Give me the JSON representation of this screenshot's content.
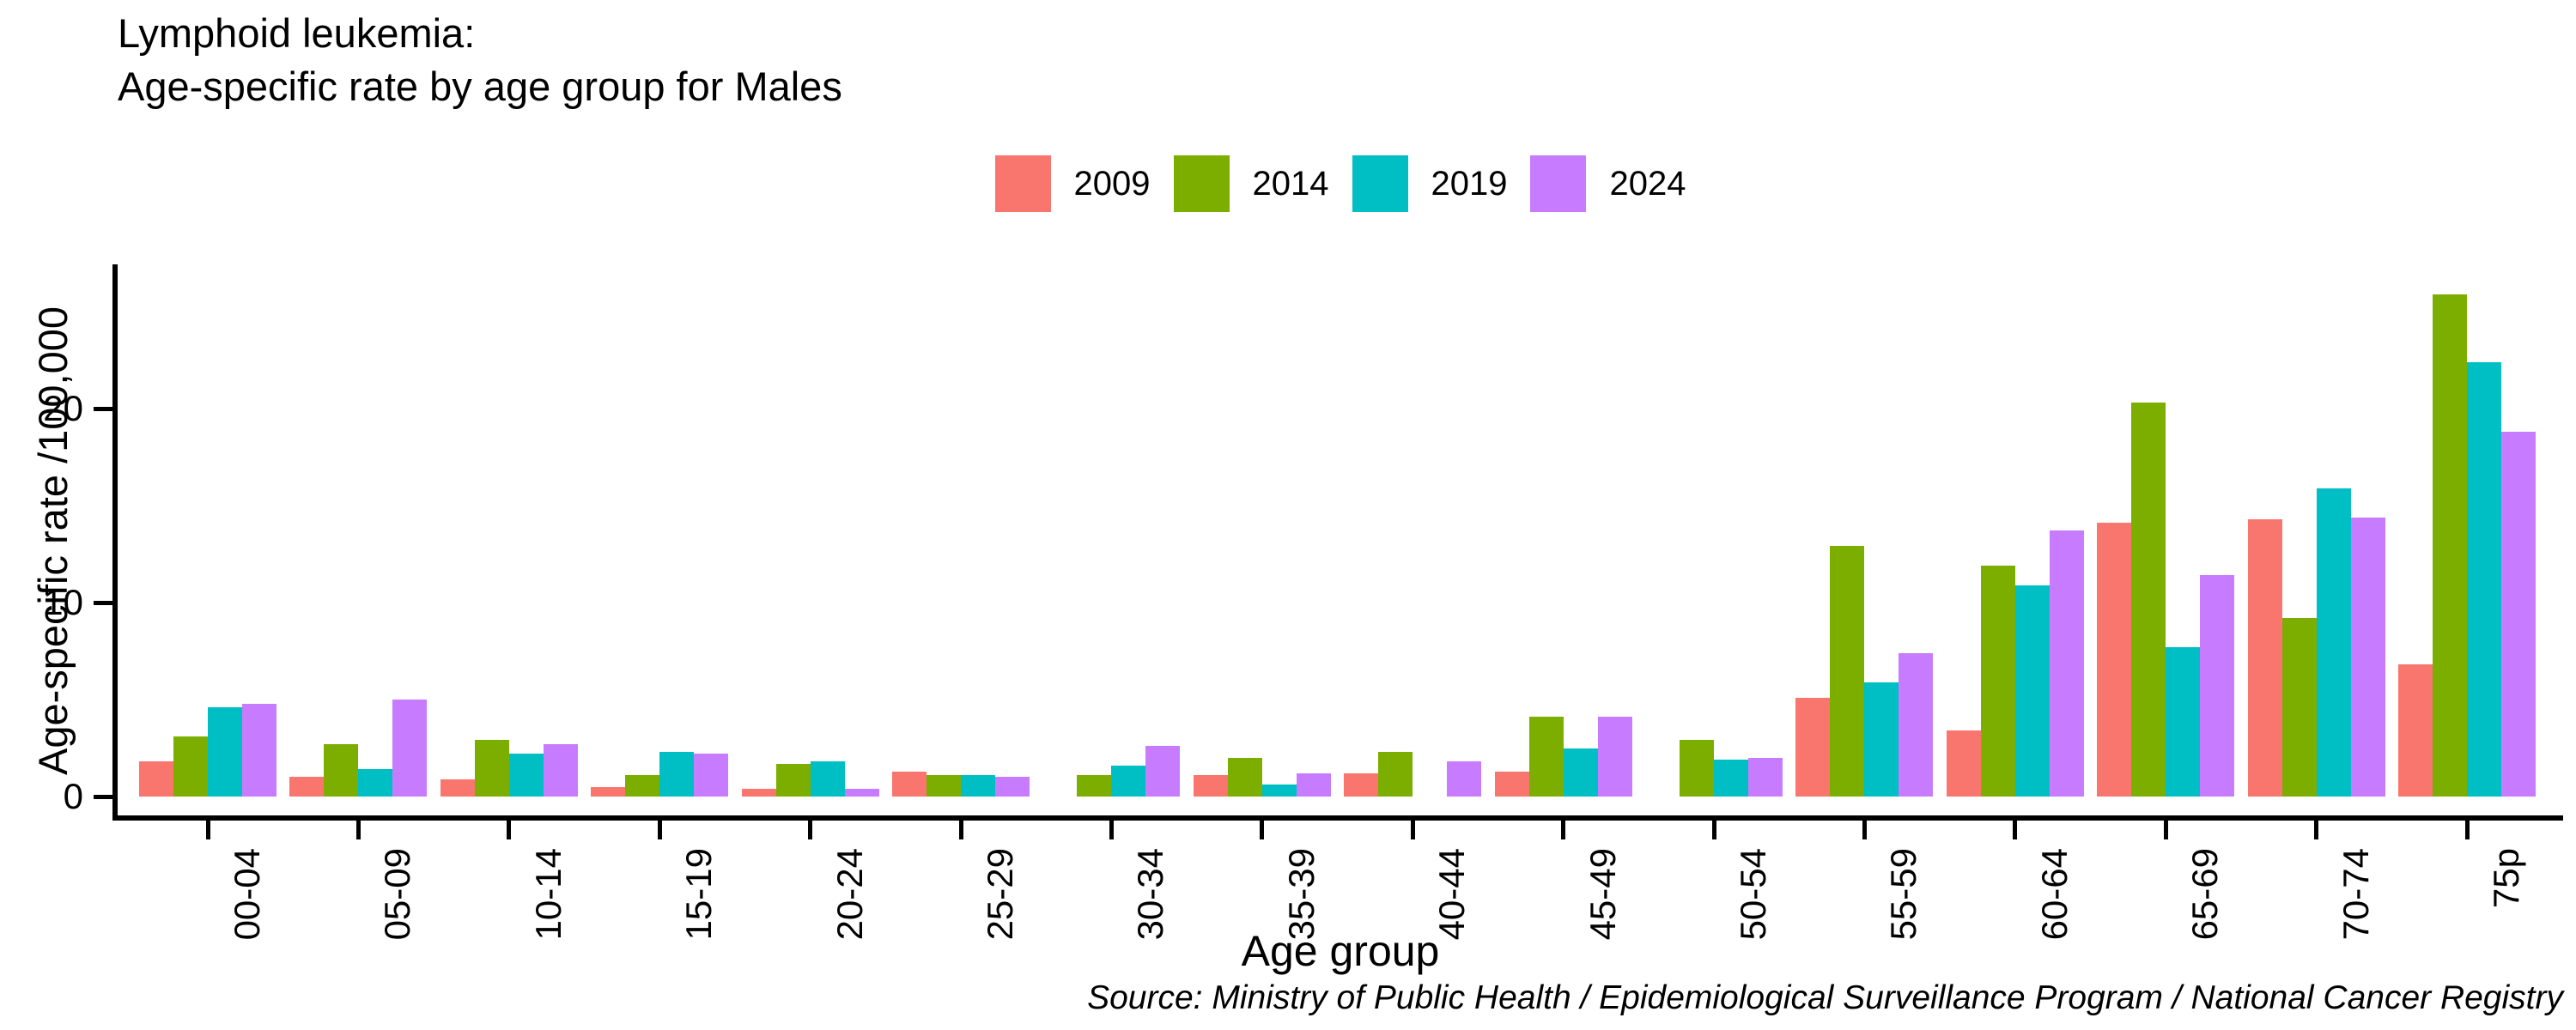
{
  "header": {
    "title_line1": "Lymphoid leukemia:",
    "title_line2": "Age-specific rate by age group for Males"
  },
  "axes": {
    "y_title": "Age-specific rate /100,000",
    "x_title": "Age group",
    "y_ticks": [
      0,
      10,
      20
    ]
  },
  "footer": {
    "source": "Source: Ministry of Public Health / Epidemiological Surveillance Program / National Cancer Registry"
  },
  "chart_data": {
    "type": "bar",
    "title": "Lymphoid leukemia: Age-specific rate by age group for Males",
    "xlabel": "Age group",
    "ylabel": "Age-specific rate /100,000",
    "ylim": [
      0,
      27.5
    ],
    "yticks": [
      0,
      10,
      20
    ],
    "grid": false,
    "legend_position": "top-center",
    "categories": [
      "00-04",
      "05-09",
      "10-14",
      "15-19",
      "20-24",
      "25-29",
      "30-34",
      "35-39",
      "40-44",
      "45-49",
      "50-54",
      "55-59",
      "60-64",
      "65-69",
      "70-74",
      "75p"
    ],
    "series": [
      {
        "name": "2009",
        "color": "#F8766D",
        "values": [
          1.8,
          1.0,
          0.9,
          0.5,
          0.4,
          1.3,
          0,
          1.1,
          1.2,
          1.3,
          0,
          5.1,
          3.4,
          14.1,
          14.3,
          6.8
        ]
      },
      {
        "name": "2014",
        "color": "#7CAE00",
        "values": [
          3.1,
          2.7,
          2.9,
          1.1,
          1.7,
          1.1,
          1.1,
          2.0,
          2.3,
          4.1,
          2.9,
          12.9,
          11.9,
          20.3,
          9.2,
          25.9
        ]
      },
      {
        "name": "2019",
        "color": "#00BFC4",
        "values": [
          4.6,
          1.4,
          2.2,
          2.3,
          1.8,
          1.1,
          1.6,
          0.6,
          0,
          2.5,
          1.9,
          5.9,
          10.9,
          7.7,
          15.9,
          22.4
        ]
      },
      {
        "name": "2024",
        "color": "#C77CFF",
        "values": [
          4.8,
          5.0,
          2.7,
          2.2,
          0.4,
          1.0,
          2.6,
          1.2,
          1.8,
          4.1,
          2.0,
          7.4,
          13.7,
          11.4,
          14.4,
          18.8
        ]
      }
    ]
  }
}
